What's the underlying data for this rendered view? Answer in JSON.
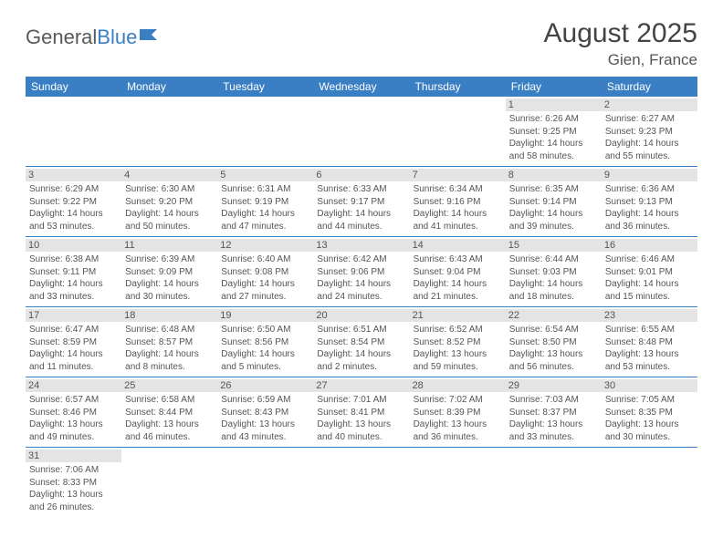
{
  "logo": {
    "part1": "General",
    "part2": "Blue"
  },
  "title": "August 2025",
  "location": "Gien, France",
  "header_bg": "#3a7fc4",
  "day_headers": [
    "Sunday",
    "Monday",
    "Tuesday",
    "Wednesday",
    "Thursday",
    "Friday",
    "Saturday"
  ],
  "weeks": [
    [
      null,
      null,
      null,
      null,
      null,
      {
        "n": "1",
        "sr": "Sunrise: 6:26 AM",
        "ss": "Sunset: 9:25 PM",
        "d1": "Daylight: 14 hours",
        "d2": "and 58 minutes."
      },
      {
        "n": "2",
        "sr": "Sunrise: 6:27 AM",
        "ss": "Sunset: 9:23 PM",
        "d1": "Daylight: 14 hours",
        "d2": "and 55 minutes."
      }
    ],
    [
      {
        "n": "3",
        "sr": "Sunrise: 6:29 AM",
        "ss": "Sunset: 9:22 PM",
        "d1": "Daylight: 14 hours",
        "d2": "and 53 minutes."
      },
      {
        "n": "4",
        "sr": "Sunrise: 6:30 AM",
        "ss": "Sunset: 9:20 PM",
        "d1": "Daylight: 14 hours",
        "d2": "and 50 minutes."
      },
      {
        "n": "5",
        "sr": "Sunrise: 6:31 AM",
        "ss": "Sunset: 9:19 PM",
        "d1": "Daylight: 14 hours",
        "d2": "and 47 minutes."
      },
      {
        "n": "6",
        "sr": "Sunrise: 6:33 AM",
        "ss": "Sunset: 9:17 PM",
        "d1": "Daylight: 14 hours",
        "d2": "and 44 minutes."
      },
      {
        "n": "7",
        "sr": "Sunrise: 6:34 AM",
        "ss": "Sunset: 9:16 PM",
        "d1": "Daylight: 14 hours",
        "d2": "and 41 minutes."
      },
      {
        "n": "8",
        "sr": "Sunrise: 6:35 AM",
        "ss": "Sunset: 9:14 PM",
        "d1": "Daylight: 14 hours",
        "d2": "and 39 minutes."
      },
      {
        "n": "9",
        "sr": "Sunrise: 6:36 AM",
        "ss": "Sunset: 9:13 PM",
        "d1": "Daylight: 14 hours",
        "d2": "and 36 minutes."
      }
    ],
    [
      {
        "n": "10",
        "sr": "Sunrise: 6:38 AM",
        "ss": "Sunset: 9:11 PM",
        "d1": "Daylight: 14 hours",
        "d2": "and 33 minutes."
      },
      {
        "n": "11",
        "sr": "Sunrise: 6:39 AM",
        "ss": "Sunset: 9:09 PM",
        "d1": "Daylight: 14 hours",
        "d2": "and 30 minutes."
      },
      {
        "n": "12",
        "sr": "Sunrise: 6:40 AM",
        "ss": "Sunset: 9:08 PM",
        "d1": "Daylight: 14 hours",
        "d2": "and 27 minutes."
      },
      {
        "n": "13",
        "sr": "Sunrise: 6:42 AM",
        "ss": "Sunset: 9:06 PM",
        "d1": "Daylight: 14 hours",
        "d2": "and 24 minutes."
      },
      {
        "n": "14",
        "sr": "Sunrise: 6:43 AM",
        "ss": "Sunset: 9:04 PM",
        "d1": "Daylight: 14 hours",
        "d2": "and 21 minutes."
      },
      {
        "n": "15",
        "sr": "Sunrise: 6:44 AM",
        "ss": "Sunset: 9:03 PM",
        "d1": "Daylight: 14 hours",
        "d2": "and 18 minutes."
      },
      {
        "n": "16",
        "sr": "Sunrise: 6:46 AM",
        "ss": "Sunset: 9:01 PM",
        "d1": "Daylight: 14 hours",
        "d2": "and 15 minutes."
      }
    ],
    [
      {
        "n": "17",
        "sr": "Sunrise: 6:47 AM",
        "ss": "Sunset: 8:59 PM",
        "d1": "Daylight: 14 hours",
        "d2": "and 11 minutes."
      },
      {
        "n": "18",
        "sr": "Sunrise: 6:48 AM",
        "ss": "Sunset: 8:57 PM",
        "d1": "Daylight: 14 hours",
        "d2": "and 8 minutes."
      },
      {
        "n": "19",
        "sr": "Sunrise: 6:50 AM",
        "ss": "Sunset: 8:56 PM",
        "d1": "Daylight: 14 hours",
        "d2": "and 5 minutes."
      },
      {
        "n": "20",
        "sr": "Sunrise: 6:51 AM",
        "ss": "Sunset: 8:54 PM",
        "d1": "Daylight: 14 hours",
        "d2": "and 2 minutes."
      },
      {
        "n": "21",
        "sr": "Sunrise: 6:52 AM",
        "ss": "Sunset: 8:52 PM",
        "d1": "Daylight: 13 hours",
        "d2": "and 59 minutes."
      },
      {
        "n": "22",
        "sr": "Sunrise: 6:54 AM",
        "ss": "Sunset: 8:50 PM",
        "d1": "Daylight: 13 hours",
        "d2": "and 56 minutes."
      },
      {
        "n": "23",
        "sr": "Sunrise: 6:55 AM",
        "ss": "Sunset: 8:48 PM",
        "d1": "Daylight: 13 hours",
        "d2": "and 53 minutes."
      }
    ],
    [
      {
        "n": "24",
        "sr": "Sunrise: 6:57 AM",
        "ss": "Sunset: 8:46 PM",
        "d1": "Daylight: 13 hours",
        "d2": "and 49 minutes."
      },
      {
        "n": "25",
        "sr": "Sunrise: 6:58 AM",
        "ss": "Sunset: 8:44 PM",
        "d1": "Daylight: 13 hours",
        "d2": "and 46 minutes."
      },
      {
        "n": "26",
        "sr": "Sunrise: 6:59 AM",
        "ss": "Sunset: 8:43 PM",
        "d1": "Daylight: 13 hours",
        "d2": "and 43 minutes."
      },
      {
        "n": "27",
        "sr": "Sunrise: 7:01 AM",
        "ss": "Sunset: 8:41 PM",
        "d1": "Daylight: 13 hours",
        "d2": "and 40 minutes."
      },
      {
        "n": "28",
        "sr": "Sunrise: 7:02 AM",
        "ss": "Sunset: 8:39 PM",
        "d1": "Daylight: 13 hours",
        "d2": "and 36 minutes."
      },
      {
        "n": "29",
        "sr": "Sunrise: 7:03 AM",
        "ss": "Sunset: 8:37 PM",
        "d1": "Daylight: 13 hours",
        "d2": "and 33 minutes."
      },
      {
        "n": "30",
        "sr": "Sunrise: 7:05 AM",
        "ss": "Sunset: 8:35 PM",
        "d1": "Daylight: 13 hours",
        "d2": "and 30 minutes."
      }
    ],
    [
      {
        "n": "31",
        "sr": "Sunrise: 7:06 AM",
        "ss": "Sunset: 8:33 PM",
        "d1": "Daylight: 13 hours",
        "d2": "and 26 minutes."
      },
      null,
      null,
      null,
      null,
      null,
      null
    ]
  ]
}
